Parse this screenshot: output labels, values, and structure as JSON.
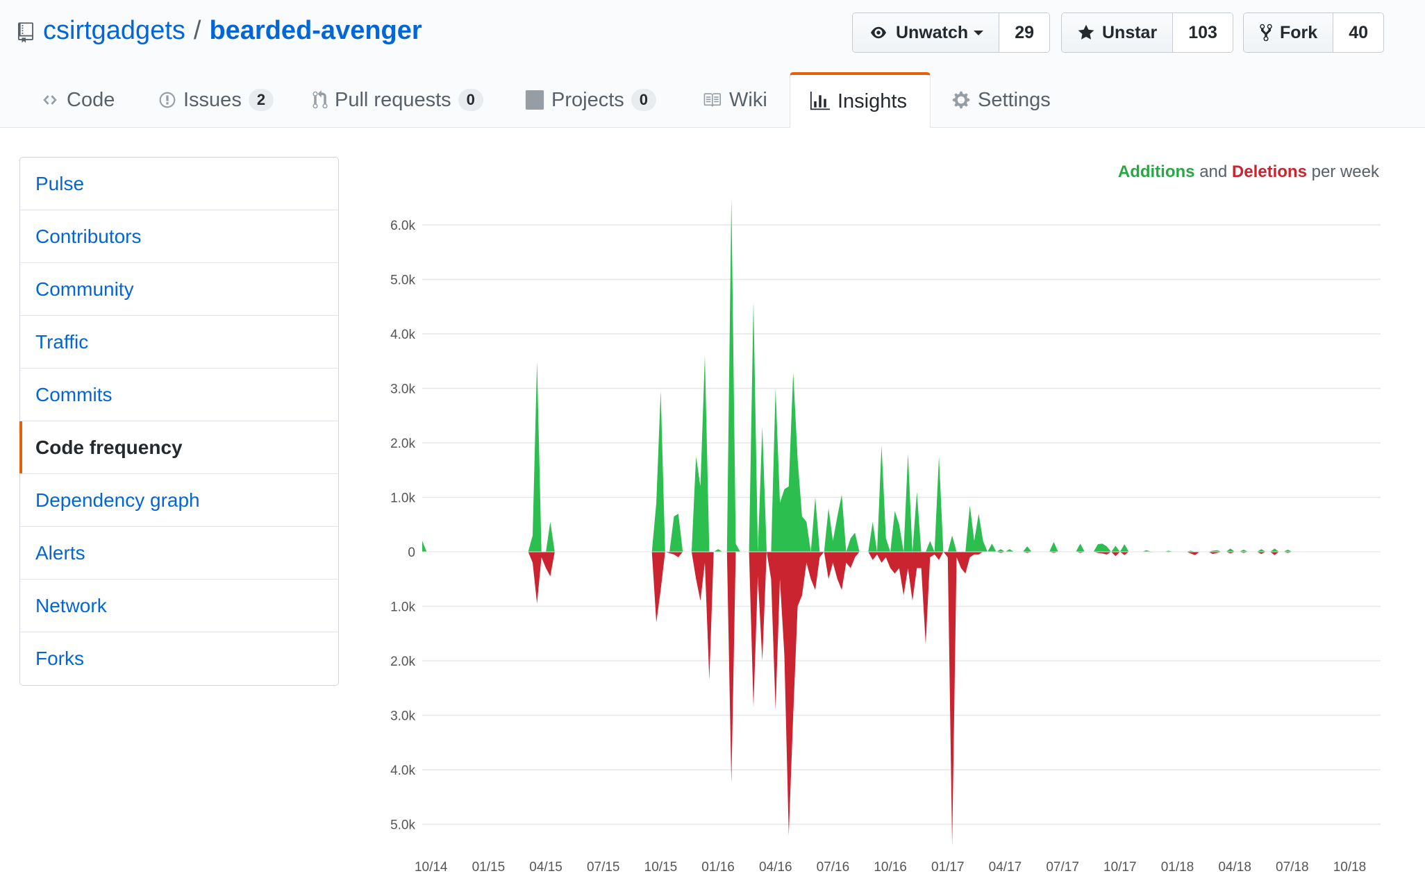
{
  "repo": {
    "owner": "csirtgadgets",
    "separator": "/",
    "name": "bearded-avenger"
  },
  "actions": [
    {
      "label": "Unwatch",
      "count": "29",
      "icon": "eye-icon"
    },
    {
      "label": "Unstar",
      "count": "103",
      "icon": "star-icon"
    },
    {
      "label": "Fork",
      "count": "40",
      "icon": "fork-icon"
    }
  ],
  "tabs": [
    {
      "label": "Code",
      "icon": "code-icon"
    },
    {
      "label": "Issues",
      "badge": "2",
      "icon": "issue-icon"
    },
    {
      "label": "Pull requests",
      "badge": "0",
      "icon": "pull-request-icon"
    },
    {
      "label": "Projects",
      "badge": "0",
      "icon": "project-icon"
    },
    {
      "label": "Wiki",
      "icon": "book-icon"
    },
    {
      "label": "Insights",
      "icon": "graph-icon",
      "selected": true
    },
    {
      "label": "Settings",
      "icon": "gear-icon"
    }
  ],
  "sidebar": {
    "items": [
      {
        "label": "Pulse"
      },
      {
        "label": "Contributors"
      },
      {
        "label": "Community"
      },
      {
        "label": "Traffic"
      },
      {
        "label": "Commits"
      },
      {
        "label": "Code frequency",
        "selected": true
      },
      {
        "label": "Dependency graph"
      },
      {
        "label": "Alerts"
      },
      {
        "label": "Network"
      },
      {
        "label": "Forks"
      }
    ]
  },
  "legend": {
    "additions": "Additions",
    "and": "and",
    "deletions": "Deletions",
    "suffix": "per week"
  },
  "colors": {
    "additions": "#2cbe4e",
    "deletions": "#cb2431",
    "accent": "#e36209",
    "link": "#0366d6"
  },
  "chart_data": {
    "type": "area",
    "title": "Additions and Deletions per week",
    "xlabel": "",
    "ylabel": "",
    "ylim": [
      -5300,
      6500
    ],
    "y_ticks": [
      {
        "value": 6000,
        "label": "6.0k"
      },
      {
        "value": 5000,
        "label": "5.0k"
      },
      {
        "value": 4000,
        "label": "4.0k"
      },
      {
        "value": 3000,
        "label": "3.0k"
      },
      {
        "value": 2000,
        "label": "2.0k"
      },
      {
        "value": 1000,
        "label": "1.0k"
      },
      {
        "value": 0,
        "label": "0"
      },
      {
        "value": -1000,
        "label": "1.0k"
      },
      {
        "value": -2000,
        "label": "2.0k"
      },
      {
        "value": -3000,
        "label": "3.0k"
      },
      {
        "value": -4000,
        "label": "4.0k"
      },
      {
        "value": -5000,
        "label": "5.0k"
      }
    ],
    "x_range_weeks": [
      0,
      217
    ],
    "x_ticks": [
      {
        "week": 2,
        "label": "10/14"
      },
      {
        "week": 15,
        "label": "01/15"
      },
      {
        "week": 28,
        "label": "04/15"
      },
      {
        "week": 41,
        "label": "07/15"
      },
      {
        "week": 54,
        "label": "10/15"
      },
      {
        "week": 67,
        "label": "01/16"
      },
      {
        "week": 80,
        "label": "04/16"
      },
      {
        "week": 93,
        "label": "07/16"
      },
      {
        "week": 106,
        "label": "10/16"
      },
      {
        "week": 119,
        "label": "01/17"
      },
      {
        "week": 132,
        "label": "04/17"
      },
      {
        "week": 145,
        "label": "07/17"
      },
      {
        "week": 158,
        "label": "10/17"
      },
      {
        "week": 171,
        "label": "01/18"
      },
      {
        "week": 184,
        "label": "04/18"
      },
      {
        "week": 197,
        "label": "07/18"
      },
      {
        "week": 210,
        "label": "10/18"
      }
    ],
    "series": [
      {
        "name": "Additions",
        "points": [
          [
            0,
            200
          ],
          [
            1,
            0
          ],
          [
            24,
            0
          ],
          [
            25,
            300
          ],
          [
            26,
            3500
          ],
          [
            27,
            0
          ],
          [
            28,
            0
          ],
          [
            29,
            550
          ],
          [
            30,
            0
          ],
          [
            52,
            0
          ],
          [
            53,
            900
          ],
          [
            54,
            2950
          ],
          [
            55,
            0
          ],
          [
            56,
            0
          ],
          [
            57,
            650
          ],
          [
            58,
            700
          ],
          [
            59,
            0
          ],
          [
            61,
            0
          ],
          [
            62,
            1750
          ],
          [
            63,
            1200
          ],
          [
            64,
            3600
          ],
          [
            65,
            0
          ],
          [
            66,
            0
          ],
          [
            67,
            50
          ],
          [
            68,
            0
          ],
          [
            69,
            0
          ],
          [
            70,
            6500
          ],
          [
            71,
            150
          ],
          [
            72,
            0
          ],
          [
            74,
            0
          ],
          [
            75,
            4600
          ],
          [
            76,
            0
          ],
          [
            77,
            2300
          ],
          [
            78,
            0
          ],
          [
            79,
            0
          ],
          [
            80,
            3000
          ],
          [
            81,
            900
          ],
          [
            82,
            1150
          ],
          [
            83,
            1200
          ],
          [
            84,
            3300
          ],
          [
            85,
            1700
          ],
          [
            86,
            650
          ],
          [
            87,
            550
          ],
          [
            88,
            0
          ],
          [
            89,
            1000
          ],
          [
            90,
            0
          ],
          [
            91,
            0
          ],
          [
            92,
            800
          ],
          [
            93,
            200
          ],
          [
            94,
            650
          ],
          [
            95,
            1050
          ],
          [
            96,
            0
          ],
          [
            97,
            250
          ],
          [
            98,
            350
          ],
          [
            99,
            0
          ],
          [
            100,
            0
          ],
          [
            101,
            0
          ],
          [
            102,
            550
          ],
          [
            103,
            0
          ],
          [
            104,
            1950
          ],
          [
            105,
            250
          ],
          [
            106,
            0
          ],
          [
            107,
            750
          ],
          [
            108,
            500
          ],
          [
            109,
            0
          ],
          [
            110,
            1800
          ],
          [
            111,
            0
          ],
          [
            112,
            1100
          ],
          [
            113,
            0
          ],
          [
            114,
            0
          ],
          [
            115,
            200
          ],
          [
            116,
            0
          ],
          [
            117,
            1750
          ],
          [
            118,
            0
          ],
          [
            119,
            0
          ],
          [
            120,
            300
          ],
          [
            121,
            0
          ],
          [
            122,
            0
          ],
          [
            123,
            0
          ],
          [
            124,
            850
          ],
          [
            125,
            200
          ],
          [
            126,
            700
          ],
          [
            127,
            200
          ],
          [
            128,
            0
          ],
          [
            129,
            150
          ],
          [
            130,
            0
          ],
          [
            131,
            50
          ],
          [
            132,
            0
          ],
          [
            133,
            50
          ],
          [
            134,
            0
          ],
          [
            136,
            0
          ],
          [
            137,
            100
          ],
          [
            138,
            0
          ],
          [
            142,
            0
          ],
          [
            143,
            180
          ],
          [
            144,
            0
          ],
          [
            148,
            0
          ],
          [
            149,
            150
          ],
          [
            150,
            0
          ],
          [
            151,
            0
          ],
          [
            152,
            0
          ],
          [
            153,
            140
          ],
          [
            154,
            150
          ],
          [
            155,
            100
          ],
          [
            156,
            0
          ],
          [
            157,
            110
          ],
          [
            158,
            0
          ],
          [
            159,
            140
          ],
          [
            160,
            0
          ],
          [
            163,
            0
          ],
          [
            164,
            30
          ],
          [
            165,
            0
          ],
          [
            168,
            0
          ],
          [
            169,
            20
          ],
          [
            170,
            0
          ],
          [
            173,
            0
          ],
          [
            174,
            20
          ],
          [
            175,
            0
          ],
          [
            178,
            0
          ],
          [
            179,
            20
          ],
          [
            180,
            30
          ],
          [
            181,
            0
          ],
          [
            182,
            0
          ],
          [
            183,
            60
          ],
          [
            184,
            0
          ],
          [
            185,
            0
          ],
          [
            186,
            40
          ],
          [
            187,
            0
          ],
          [
            189,
            0
          ],
          [
            190,
            50
          ],
          [
            191,
            0
          ],
          [
            192,
            0
          ],
          [
            193,
            60
          ],
          [
            194,
            0
          ],
          [
            195,
            0
          ],
          [
            196,
            40
          ],
          [
            197,
            0
          ]
        ]
      },
      {
        "name": "Deletions",
        "points": [
          [
            0,
            0
          ],
          [
            24,
            0
          ],
          [
            25,
            -200
          ],
          [
            26,
            -950
          ],
          [
            27,
            -100
          ],
          [
            28,
            -300
          ],
          [
            29,
            -450
          ],
          [
            30,
            0
          ],
          [
            52,
            0
          ],
          [
            53,
            -1300
          ],
          [
            54,
            -700
          ],
          [
            55,
            0
          ],
          [
            57,
            -50
          ],
          [
            58,
            -100
          ],
          [
            59,
            0
          ],
          [
            61,
            0
          ],
          [
            62,
            -500
          ],
          [
            63,
            -900
          ],
          [
            64,
            -200
          ],
          [
            65,
            -2350
          ],
          [
            66,
            0
          ],
          [
            69,
            0
          ],
          [
            70,
            -4250
          ],
          [
            71,
            0
          ],
          [
            74,
            0
          ],
          [
            75,
            -2850
          ],
          [
            76,
            -450
          ],
          [
            77,
            -2000
          ],
          [
            78,
            0
          ],
          [
            79,
            -500
          ],
          [
            80,
            -2900
          ],
          [
            81,
            -500
          ],
          [
            82,
            -1900
          ],
          [
            83,
            -5200
          ],
          [
            84,
            -3000
          ],
          [
            85,
            -1000
          ],
          [
            86,
            -800
          ],
          [
            87,
            -200
          ],
          [
            88,
            -500
          ],
          [
            89,
            -700
          ],
          [
            90,
            -100
          ],
          [
            91,
            0
          ],
          [
            92,
            -500
          ],
          [
            93,
            -200
          ],
          [
            94,
            -500
          ],
          [
            95,
            -700
          ],
          [
            96,
            -200
          ],
          [
            97,
            -300
          ],
          [
            98,
            -100
          ],
          [
            99,
            0
          ],
          [
            100,
            0
          ],
          [
            101,
            0
          ],
          [
            102,
            -150
          ],
          [
            103,
            -50
          ],
          [
            104,
            -200
          ],
          [
            105,
            -100
          ],
          [
            106,
            -300
          ],
          [
            107,
            -400
          ],
          [
            108,
            -300
          ],
          [
            109,
            -800
          ],
          [
            110,
            -300
          ],
          [
            111,
            -900
          ],
          [
            112,
            -300
          ],
          [
            113,
            -300
          ],
          [
            114,
            -1700
          ],
          [
            115,
            -100
          ],
          [
            116,
            -50
          ],
          [
            117,
            -150
          ],
          [
            118,
            0
          ],
          [
            119,
            -100
          ],
          [
            120,
            -5400
          ],
          [
            121,
            -100
          ],
          [
            122,
            -300
          ],
          [
            123,
            -400
          ],
          [
            124,
            -100
          ],
          [
            125,
            -50
          ],
          [
            126,
            -50
          ],
          [
            127,
            0
          ],
          [
            130,
            0
          ],
          [
            131,
            -20
          ],
          [
            132,
            0
          ],
          [
            136,
            0
          ],
          [
            137,
            -20
          ],
          [
            138,
            0
          ],
          [
            142,
            0
          ],
          [
            143,
            -20
          ],
          [
            144,
            0
          ],
          [
            148,
            0
          ],
          [
            149,
            -20
          ],
          [
            150,
            0
          ],
          [
            152,
            0
          ],
          [
            153,
            -20
          ],
          [
            154,
            -30
          ],
          [
            155,
            -50
          ],
          [
            156,
            0
          ],
          [
            157,
            -80
          ],
          [
            158,
            0
          ],
          [
            159,
            -60
          ],
          [
            160,
            0
          ],
          [
            164,
            0
          ],
          [
            165,
            -10
          ],
          [
            166,
            0
          ],
          [
            168,
            0
          ],
          [
            169,
            -10
          ],
          [
            170,
            0
          ],
          [
            173,
            0
          ],
          [
            174,
            -30
          ],
          [
            175,
            -60
          ],
          [
            176,
            0
          ],
          [
            178,
            0
          ],
          [
            179,
            -40
          ],
          [
            180,
            -20
          ],
          [
            181,
            0
          ],
          [
            182,
            0
          ],
          [
            183,
            -30
          ],
          [
            184,
            0
          ],
          [
            185,
            0
          ],
          [
            186,
            -20
          ],
          [
            187,
            0
          ],
          [
            189,
            0
          ],
          [
            190,
            -40
          ],
          [
            191,
            0
          ],
          [
            192,
            0
          ],
          [
            193,
            -60
          ],
          [
            194,
            0
          ],
          [
            195,
            0
          ],
          [
            196,
            -20
          ],
          [
            197,
            0
          ]
        ]
      }
    ]
  }
}
